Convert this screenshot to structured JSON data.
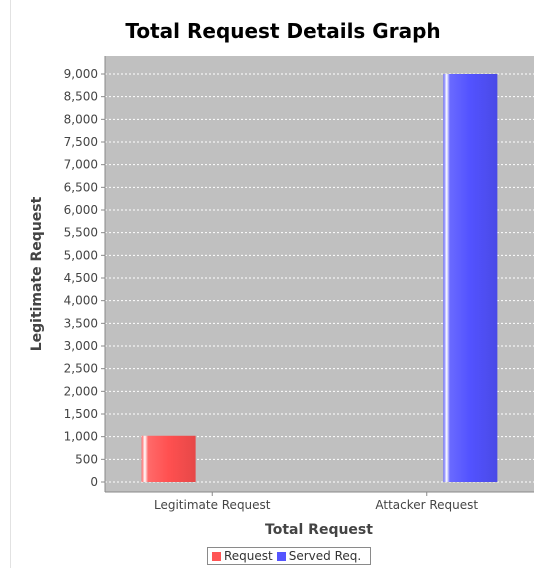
{
  "chart_data": {
    "type": "bar",
    "title": "Total Request Details Graph",
    "xlabel": "Total Request",
    "ylabel": "Legitimate Request",
    "categories": [
      "Legitimate Request",
      "Attacker Request"
    ],
    "series": [
      {
        "name": "Request",
        "color": "#ff5555",
        "values": [
          1020,
          0
        ]
      },
      {
        "name": "Served Req.",
        "color": "#5555ff",
        "values": [
          0,
          9000
        ]
      }
    ],
    "ylim": [
      0,
      9000
    ],
    "yticks": [
      0,
      500,
      1000,
      1500,
      2000,
      2500,
      3000,
      3500,
      4000,
      4500,
      5000,
      5500,
      6000,
      6500,
      7000,
      7500,
      8000,
      8500,
      9000
    ],
    "ytick_labels": [
      "0",
      "500",
      "1,000",
      "1,500",
      "2,000",
      "2,500",
      "3,000",
      "3,500",
      "4,000",
      "4,500",
      "5,000",
      "5,500",
      "6,000",
      "6,500",
      "7,000",
      "7,500",
      "8,000",
      "8,500",
      "9,000"
    ],
    "grid": true,
    "plot_background": "#c0c0c0",
    "legend_position": "bottom"
  }
}
